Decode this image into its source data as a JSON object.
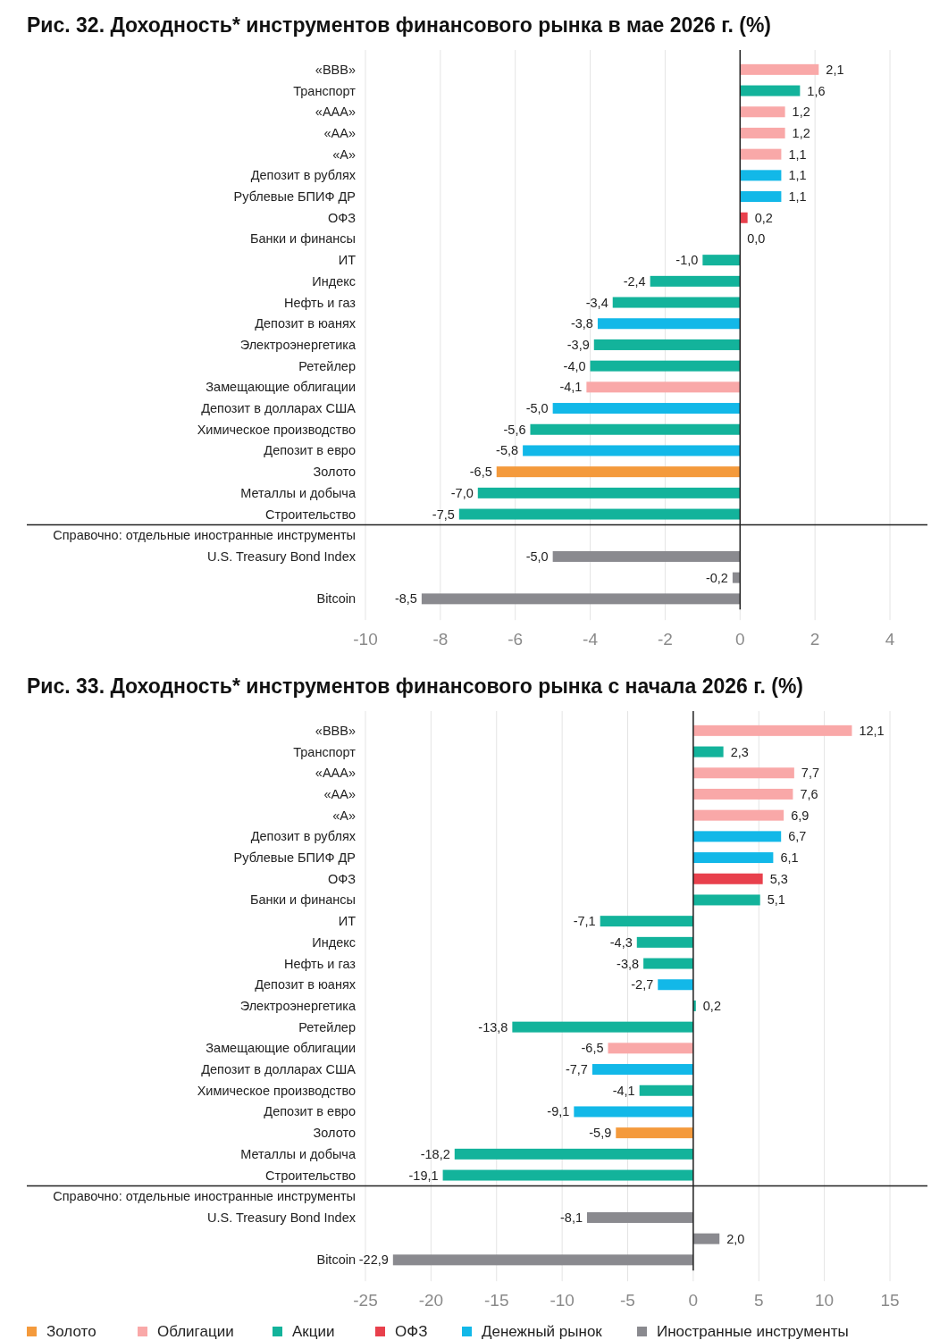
{
  "chart_data": [
    {
      "type": "bar",
      "orientation": "horizontal",
      "stacked": true,
      "title": "Рис. 32. Доходность* инструментов финансового рынка в мае 2026 г. (%)",
      "categories": [
        "«BBB»",
        "Транспорт",
        "«AAA»",
        "«AA»",
        "«A»",
        "Депозит в рублях",
        "Рублевые БПИФ ДР",
        "ОФЗ",
        "Банки и финансы",
        "ИТ",
        "Индекс",
        "Нефть и газ",
        "Депозит в юанях",
        "Электроэнергетика",
        "Ретейлер",
        "Замещающие облигации",
        "Депозит в долларах США",
        "Химическое производство",
        "Депозит в евро",
        "Золото",
        "Металлы и добыча",
        "Строительство",
        "Справочно: отдельные иностранные инструменты",
        "U.S. Treasury Bond Index",
        null,
        "Bitcoin"
      ],
      "series": [
        {
          "color": "#f49a3c",
          "values": [
            null,
            null,
            null,
            null,
            null,
            null,
            null,
            null,
            null,
            null,
            null,
            null,
            null,
            null,
            null,
            null,
            null,
            null,
            null,
            -6.5,
            null,
            null,
            null,
            null,
            null,
            null
          ],
          "value_labels": [
            null,
            null,
            null,
            null,
            null,
            null,
            null,
            null,
            null,
            null,
            null,
            null,
            null,
            null,
            null,
            null,
            null,
            null,
            null,
            "-6,5",
            null,
            null,
            null,
            null,
            null,
            null
          ]
        },
        {
          "color": "#f9a8a8",
          "values": [
            2.1,
            null,
            1.2,
            1.2,
            1.1,
            null,
            null,
            null,
            null,
            null,
            null,
            null,
            null,
            null,
            null,
            -4.1,
            null,
            null,
            null,
            null,
            null,
            null,
            null,
            null,
            null,
            null
          ],
          "value_labels": [
            "2,1",
            null,
            "1,2",
            "1,2",
            "1,1",
            null,
            null,
            null,
            null,
            null,
            null,
            null,
            null,
            null,
            null,
            "-4,1",
            null,
            null,
            null,
            null,
            null,
            null,
            null,
            null,
            null,
            null
          ]
        },
        {
          "color": "#13b39b",
          "values": [
            null,
            1.6,
            null,
            null,
            null,
            null,
            null,
            null,
            0.0,
            -1.0,
            -2.4,
            -3.4,
            null,
            -3.9,
            -4.0,
            null,
            null,
            -5.6,
            null,
            null,
            -7.0,
            -7.5,
            null,
            null,
            null,
            null
          ],
          "value_labels": [
            null,
            "1,6",
            null,
            null,
            null,
            null,
            null,
            null,
            "0,0",
            "-1,0",
            "-2,4",
            "-3,4",
            null,
            "-3,9",
            "-4,0",
            null,
            null,
            "-5,6",
            null,
            null,
            "-7,0",
            "-7,5",
            null,
            null,
            null,
            null
          ]
        },
        {
          "color": "#e8404c",
          "values": [
            null,
            null,
            null,
            null,
            null,
            null,
            null,
            0.2,
            null,
            null,
            null,
            null,
            null,
            null,
            null,
            null,
            null,
            null,
            null,
            null,
            null,
            null,
            null,
            null,
            null,
            null
          ],
          "value_labels": [
            null,
            null,
            null,
            null,
            null,
            null,
            null,
            "0,2",
            null,
            null,
            null,
            null,
            null,
            null,
            null,
            null,
            null,
            null,
            null,
            null,
            null,
            null,
            null,
            null,
            null,
            null
          ]
        },
        {
          "color": "#12b8e8",
          "values": [
            null,
            null,
            null,
            null,
            null,
            1.1,
            1.1,
            null,
            null,
            null,
            null,
            null,
            -3.8,
            null,
            null,
            null,
            -5.0,
            null,
            -5.8,
            null,
            null,
            null,
            null,
            null,
            null,
            null
          ],
          "value_labels": [
            null,
            null,
            null,
            null,
            null,
            "1,1",
            "1,1",
            null,
            null,
            null,
            null,
            null,
            "-3,8",
            null,
            null,
            null,
            "-5,0",
            null,
            "-5,8",
            null,
            null,
            null,
            null,
            null,
            null,
            null
          ]
        },
        {
          "color": "#8a8a8f",
          "values": [
            null,
            null,
            null,
            null,
            null,
            null,
            null,
            null,
            null,
            null,
            null,
            null,
            null,
            null,
            null,
            null,
            null,
            null,
            null,
            null,
            null,
            null,
            null,
            -5.0,
            -0.2,
            -8.5
          ],
          "value_labels": [
            null,
            null,
            null,
            null,
            null,
            null,
            null,
            null,
            null,
            null,
            null,
            null,
            null,
            null,
            null,
            null,
            null,
            null,
            null,
            null,
            null,
            null,
            null,
            "-5,0",
            "-0,2",
            "-8,5"
          ]
        }
      ],
      "xlim": [
        -10,
        4
      ],
      "xticks": [
        -10,
        -8,
        -6,
        -4,
        -2,
        0,
        2,
        4
      ],
      "grid": "x",
      "legend": false
    },
    {
      "type": "bar",
      "orientation": "horizontal",
      "stacked": true,
      "title": "Рис. 33. Доходность* инструментов финансового рынка с начала 2026 г. (%)",
      "categories": [
        "«BBB»",
        "Транспорт",
        "«AAA»",
        "«AA»",
        "«A»",
        "Депозит в рублях",
        "Рублевые БПИФ ДР",
        "ОФЗ",
        "Банки и финансы",
        "ИТ",
        "Индекс",
        "Нефть и газ",
        "Депозит в юанях",
        "Электроэнергетика",
        "Ретейлер",
        "Замещающие облигации",
        "Депозит в долларах США",
        "Химическое производство",
        "Депозит в евро",
        "Золото",
        "Металлы и добыча",
        "Строительство",
        "Справочно: отдельные иностранные инструменты",
        "U.S. Treasury Bond Index",
        null,
        "Bitcoin"
      ],
      "series": [
        {
          "name": "Золото",
          "color": "#f49a3c",
          "values": [
            null,
            null,
            null,
            null,
            null,
            null,
            null,
            null,
            null,
            null,
            null,
            null,
            null,
            null,
            null,
            null,
            null,
            null,
            null,
            -5.9,
            null,
            null,
            null,
            null,
            null,
            null
          ],
          "value_labels": [
            null,
            null,
            null,
            null,
            null,
            null,
            null,
            null,
            null,
            null,
            null,
            null,
            null,
            null,
            null,
            null,
            null,
            null,
            null,
            "-5,9",
            null,
            null,
            null,
            null,
            null,
            null
          ]
        },
        {
          "name": "Облигации",
          "color": "#f9a8a8",
          "values": [
            12.1,
            null,
            7.7,
            7.6,
            6.9,
            null,
            null,
            null,
            null,
            null,
            null,
            null,
            null,
            null,
            null,
            -6.5,
            null,
            null,
            null,
            null,
            null,
            null,
            null,
            null,
            null,
            null
          ],
          "value_labels": [
            "12,1",
            null,
            "7,7",
            "7,6",
            "6,9",
            null,
            null,
            null,
            null,
            null,
            null,
            null,
            null,
            null,
            null,
            "-6,5",
            null,
            null,
            null,
            null,
            null,
            null,
            null,
            null,
            null,
            null
          ]
        },
        {
          "name": "Акции",
          "color": "#13b39b",
          "values": [
            null,
            2.3,
            null,
            null,
            null,
            null,
            null,
            null,
            5.1,
            -7.1,
            -4.3,
            -3.8,
            null,
            0.2,
            -13.8,
            null,
            null,
            -4.1,
            null,
            null,
            -18.2,
            -19.1,
            null,
            null,
            null,
            null
          ],
          "value_labels": [
            null,
            "2,3",
            null,
            null,
            null,
            null,
            null,
            null,
            "5,1",
            "-7,1",
            "-4,3",
            "-3,8",
            null,
            "0,2",
            "-13,8",
            null,
            null,
            "-4,1",
            null,
            null,
            "-18,2",
            "-19,1",
            null,
            null,
            null,
            null
          ]
        },
        {
          "name": "ОФЗ",
          "color": "#e8404c",
          "values": [
            null,
            null,
            null,
            null,
            null,
            null,
            null,
            5.3,
            null,
            null,
            null,
            null,
            null,
            null,
            null,
            null,
            null,
            null,
            null,
            null,
            null,
            null,
            null,
            null,
            null,
            null
          ],
          "value_labels": [
            null,
            null,
            null,
            null,
            null,
            null,
            null,
            "5,3",
            null,
            null,
            null,
            null,
            null,
            null,
            null,
            null,
            null,
            null,
            null,
            null,
            null,
            null,
            null,
            null,
            null,
            null
          ]
        },
        {
          "name": "Денежный рынок",
          "color": "#12b8e8",
          "values": [
            null,
            null,
            null,
            null,
            null,
            6.7,
            6.1,
            null,
            null,
            null,
            null,
            null,
            -2.7,
            null,
            null,
            null,
            -7.7,
            null,
            -9.1,
            null,
            null,
            null,
            null,
            null,
            null,
            null
          ],
          "value_labels": [
            null,
            null,
            null,
            null,
            null,
            "6,7",
            "6,1",
            null,
            null,
            null,
            null,
            null,
            "-2,7",
            null,
            null,
            null,
            "-7,7",
            null,
            "-9,1",
            null,
            null,
            null,
            null,
            null,
            null,
            null
          ]
        },
        {
          "name": "Иностранные инструменты",
          "color": "#8a8a8f",
          "values": [
            null,
            null,
            null,
            null,
            null,
            null,
            null,
            null,
            null,
            null,
            null,
            null,
            null,
            null,
            null,
            null,
            null,
            null,
            null,
            null,
            null,
            null,
            null,
            -8.1,
            2.0,
            -22.9
          ],
          "value_labels": [
            null,
            null,
            null,
            null,
            null,
            null,
            null,
            null,
            null,
            null,
            null,
            null,
            null,
            null,
            null,
            null,
            null,
            null,
            null,
            null,
            null,
            null,
            null,
            "-8,1",
            "2,0",
            "-22,9"
          ]
        }
      ],
      "xlim": [
        -25,
        15
      ],
      "xticks": [
        -25,
        -20,
        -15,
        -10,
        -5,
        0,
        5,
        10,
        15
      ],
      "grid": "x",
      "legend": "bottom"
    }
  ]
}
